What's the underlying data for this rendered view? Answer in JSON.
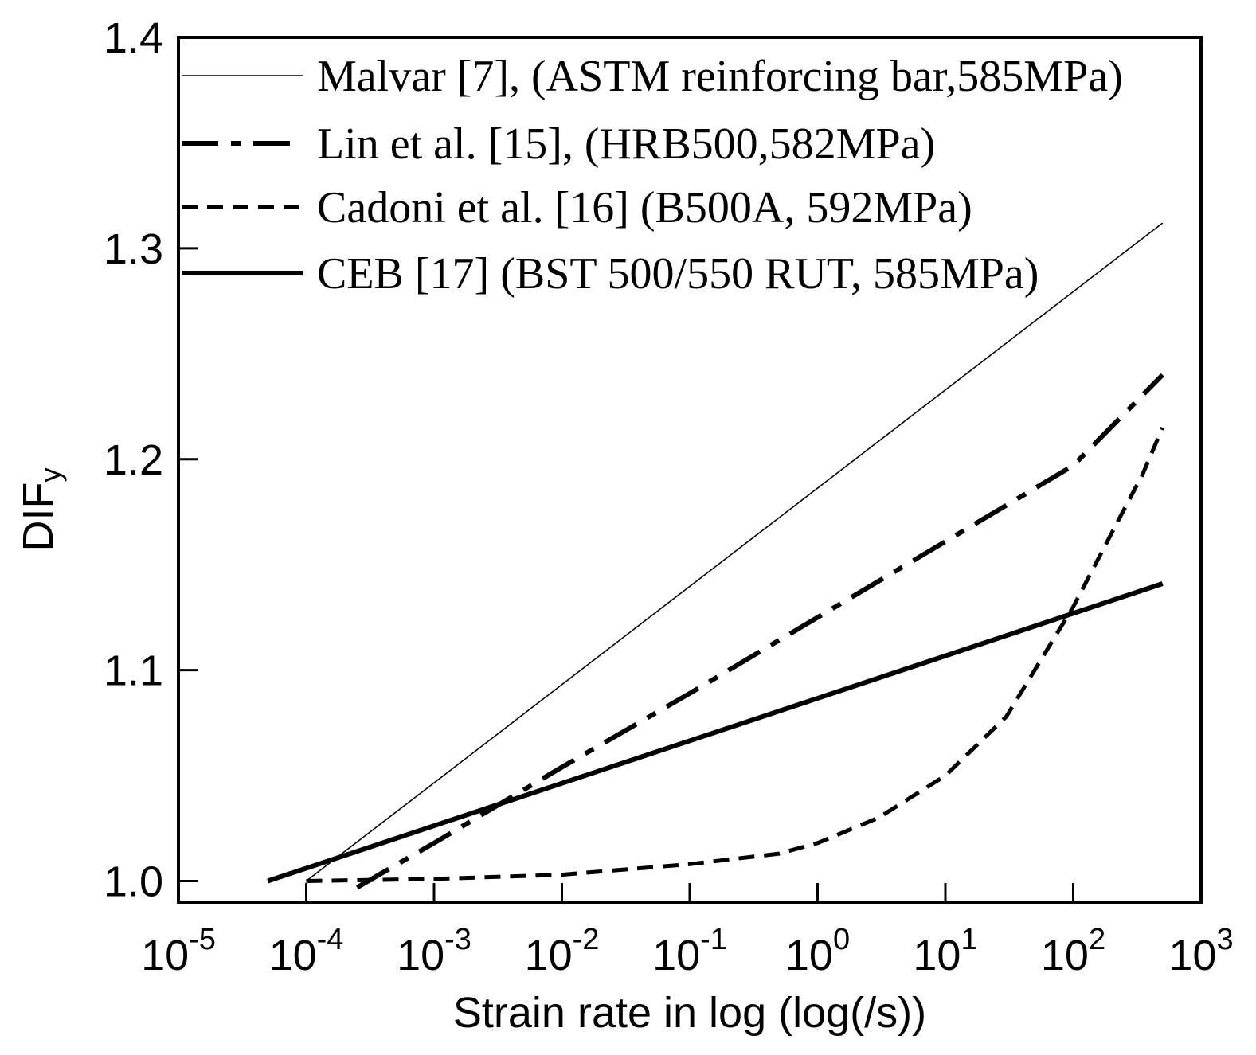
{
  "chart_data": {
    "type": "line",
    "title": "",
    "xlabel": "Strain rate in log (log(/s))",
    "ylabel_main": "DIF",
    "ylabel_sub": "y",
    "x_scale": "log",
    "xlim": [
      1e-05,
      1000
    ],
    "ylim": [
      0.99,
      1.4
    ],
    "x_ticks": [
      {
        "value": 1e-05,
        "base": "10",
        "exp": "-5"
      },
      {
        "value": 0.0001,
        "base": "10",
        "exp": "-4"
      },
      {
        "value": 0.001,
        "base": "10",
        "exp": "-3"
      },
      {
        "value": 0.01,
        "base": "10",
        "exp": "-2"
      },
      {
        "value": 0.1,
        "base": "10",
        "exp": "-1"
      },
      {
        "value": 1,
        "base": "10",
        "exp": "0"
      },
      {
        "value": 10,
        "base": "10",
        "exp": "1"
      },
      {
        "value": 100,
        "base": "10",
        "exp": "2"
      },
      {
        "value": 1000,
        "base": "10",
        "exp": "3"
      }
    ],
    "y_ticks": [
      {
        "value": 1.0,
        "label": "1.0"
      },
      {
        "value": 1.1,
        "label": "1.1"
      },
      {
        "value": 1.2,
        "label": "1.2"
      },
      {
        "value": 1.3,
        "label": "1.3"
      },
      {
        "value": 1.4,
        "label": "1.4"
      }
    ],
    "grid": false,
    "legend_position": "top-right",
    "series": [
      {
        "name": "Malvar [7], (ASTM reinforcing bar,585MPa)",
        "style": "thin",
        "x": [
          0.0001,
          500
        ],
        "y": [
          1.0,
          1.312
        ]
      },
      {
        "name": "Lin et al. [15], (HRB500,582MPa)",
        "style": "dashdot",
        "x": [
          0.00025,
          0.001,
          0.01,
          0.1,
          1,
          10,
          100,
          500
        ],
        "y": [
          0.997,
          1.018,
          1.054,
          1.089,
          1.125,
          1.161,
          1.197,
          1.24
        ]
      },
      {
        "name": "Cadoni et al. [16] (B500A, 592MPa)",
        "style": "dashed",
        "x": [
          0.0001,
          0.001,
          0.01,
          0.1,
          0.5,
          1,
          3,
          10,
          30,
          100,
          200,
          350,
          500
        ],
        "y": [
          1.0,
          1.001,
          1.003,
          1.008,
          1.013,
          1.018,
          1.03,
          1.05,
          1.078,
          1.13,
          1.165,
          1.193,
          1.215
        ]
      },
      {
        "name": "CEB [17] (BST 500/550 RUT, 585MPa)",
        "style": "solid",
        "x": [
          5e-05,
          500
        ],
        "y": [
          1.0,
          1.141
        ]
      }
    ]
  }
}
